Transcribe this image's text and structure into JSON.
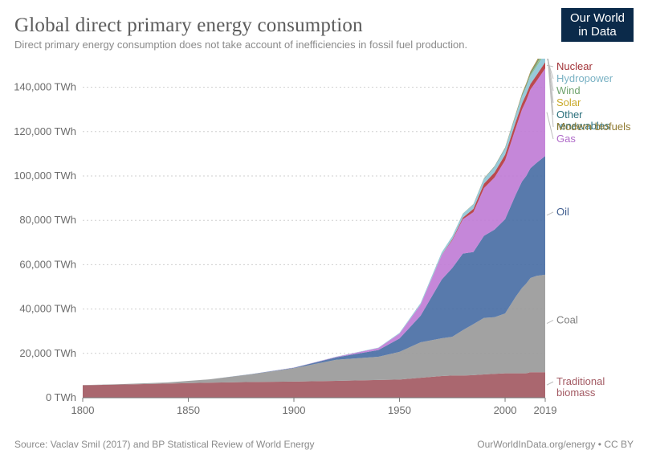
{
  "header": {
    "title": "Global direct primary energy consumption",
    "subtitle": "Direct primary energy consumption does not take account of inefficiencies in fossil fuel production.",
    "logo_line1": "Our World",
    "logo_line2": "in Data"
  },
  "footer": {
    "source": "Source: Vaclav Smil (2017) and BP Statistical Review of World Energy",
    "attribution": "OurWorldInData.org/energy  •  CC BY"
  },
  "chart": {
    "type": "stacked-area",
    "x_domain": [
      1800,
      2019
    ],
    "y_domain": [
      0,
      150000
    ],
    "x_ticks": [
      1800,
      1850,
      1900,
      1950,
      2000,
      2019
    ],
    "y_ticks": [
      {
        "v": 0,
        "label": "0 TWh"
      },
      {
        "v": 20000,
        "label": "20,000 TWh"
      },
      {
        "v": 40000,
        "label": "40,000 TWh"
      },
      {
        "v": 60000,
        "label": "60,000 TWh"
      },
      {
        "v": 80000,
        "label": "80,000 TWh"
      },
      {
        "v": 100000,
        "label": "100,000 TWh"
      },
      {
        "v": 120000,
        "label": "120,000 TWh"
      },
      {
        "v": 140000,
        "label": "140,000 TWh"
      }
    ],
    "plot_bg": "#ffffff",
    "tick_color": "#cfcfcf",
    "axis_color": "#7a7a7a",
    "label_fontsize": 13,
    "years": [
      1800,
      1820,
      1840,
      1860,
      1880,
      1900,
      1920,
      1940,
      1950,
      1960,
      1970,
      1975,
      1980,
      1985,
      1990,
      1995,
      2000,
      2005,
      2008,
      2010,
      2012,
      2015,
      2019
    ],
    "series": [
      {
        "name": "Traditional biomass",
        "label": "Traditional\nbiomass",
        "color": "#a35a63",
        "label_color": "#a35a63",
        "values": [
          5600,
          6000,
          6400,
          6800,
          7100,
          7300,
          7600,
          8000,
          8200,
          9000,
          9800,
          10000,
          10000,
          10200,
          10500,
          10800,
          11000,
          11000,
          11000,
          11000,
          11500,
          11500,
          11500
        ]
      },
      {
        "name": "Coal",
        "label": "Coal",
        "color": "#9a9a9a",
        "label_color": "#808080",
        "values": [
          100,
          200,
          500,
          1500,
          3500,
          6000,
          9500,
          10500,
          12500,
          16000,
          17000,
          17500,
          20500,
          23000,
          25500,
          25500,
          27000,
          34500,
          38500,
          40500,
          42500,
          43500,
          44000
        ]
      },
      {
        "name": "Oil",
        "label": "Oil",
        "color": "#4a6fa5",
        "label_color": "#3f5d8f",
        "values": [
          0,
          0,
          0,
          0,
          100,
          200,
          1100,
          3000,
          6000,
          12000,
          26500,
          31000,
          34500,
          32500,
          37000,
          39500,
          42500,
          46000,
          48000,
          48500,
          49500,
          51000,
          53500
        ]
      },
      {
        "name": "Gas",
        "label": "Gas",
        "color": "#c07dd6",
        "label_color": "#b06bc9",
        "values": [
          0,
          0,
          0,
          0,
          0,
          70,
          250,
          900,
          2200,
          5000,
          11000,
          12500,
          15500,
          18000,
          21500,
          23500,
          26500,
          30000,
          32500,
          34000,
          35500,
          37000,
          39500
        ]
      },
      {
        "name": "Nuclear",
        "label": "Nuclear",
        "color": "#b53a3f",
        "label_color": "#a23338",
        "values": [
          0,
          0,
          0,
          0,
          0,
          0,
          0,
          0,
          0,
          0,
          80,
          400,
          700,
          1500,
          2000,
          2300,
          2600,
          2800,
          2700,
          2800,
          2500,
          2600,
          2800
        ]
      },
      {
        "name": "Hydropower",
        "label": "Hydropower",
        "color": "#8fc5d6",
        "label_color": "#7ab2c4",
        "values": [
          0,
          0,
          0,
          0,
          0,
          40,
          60,
          200,
          350,
          700,
          1200,
          1400,
          1800,
          2000,
          2200,
          2500,
          2700,
          2900,
          3200,
          3400,
          3700,
          3900,
          4300
        ]
      },
      {
        "name": "Wind",
        "label": "Wind",
        "color": "#7fb77e",
        "label_color": "#6fa36e",
        "values": [
          0,
          0,
          0,
          0,
          0,
          0,
          0,
          0,
          0,
          0,
          0,
          0,
          0,
          0,
          0,
          10,
          30,
          100,
          220,
          350,
          550,
          850,
          1400
        ]
      },
      {
        "name": "Solar",
        "label": "Solar",
        "color": "#e4c23b",
        "label_color": "#c9aa2a",
        "values": [
          0,
          0,
          0,
          0,
          0,
          0,
          0,
          0,
          0,
          0,
          0,
          0,
          0,
          0,
          0,
          0,
          1,
          4,
          15,
          35,
          100,
          260,
          700
        ]
      },
      {
        "name": "Other renewables",
        "label": "Other\nrenewables",
        "color": "#2e7d8a",
        "label_color": "#2a6f7b",
        "values": [
          0,
          0,
          0,
          0,
          0,
          0,
          0,
          0,
          0,
          0,
          10,
          20,
          30,
          50,
          120,
          180,
          250,
          320,
          400,
          450,
          500,
          550,
          650
        ]
      },
      {
        "name": "Modern biofuels",
        "label": "Modern biofuels",
        "color": "#a38a3a",
        "label_color": "#8f7930",
        "values": [
          0,
          0,
          0,
          0,
          0,
          0,
          0,
          0,
          0,
          0,
          0,
          10,
          30,
          80,
          130,
          170,
          250,
          350,
          600,
          750,
          850,
          950,
          1100
        ]
      }
    ]
  }
}
